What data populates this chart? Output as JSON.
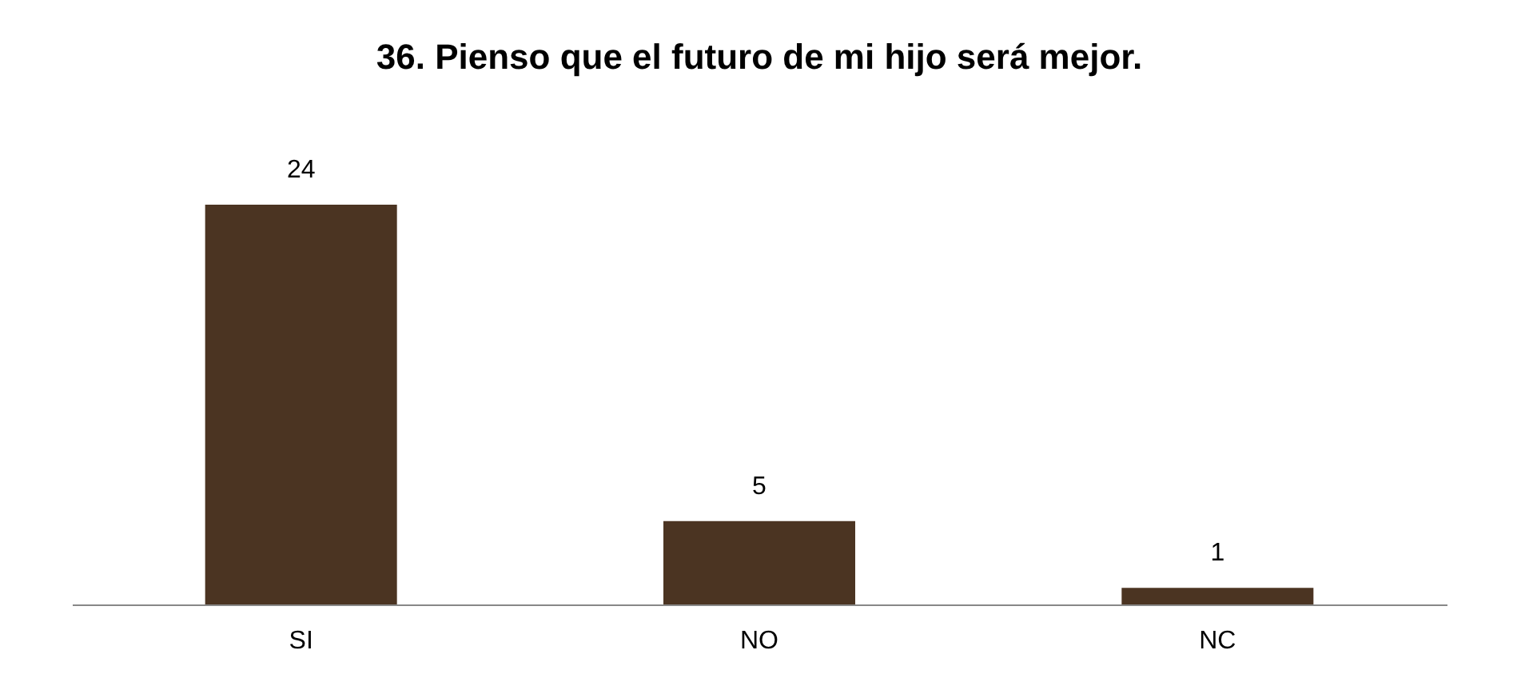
{
  "chart_data": {
    "type": "bar",
    "title": "36. Pienso que el futuro de mi hijo será mejor.",
    "categories": [
      "SI",
      "NO",
      "NC"
    ],
    "values": [
      24,
      5,
      1
    ],
    "color": "#4b3422",
    "data_labels": true
  }
}
